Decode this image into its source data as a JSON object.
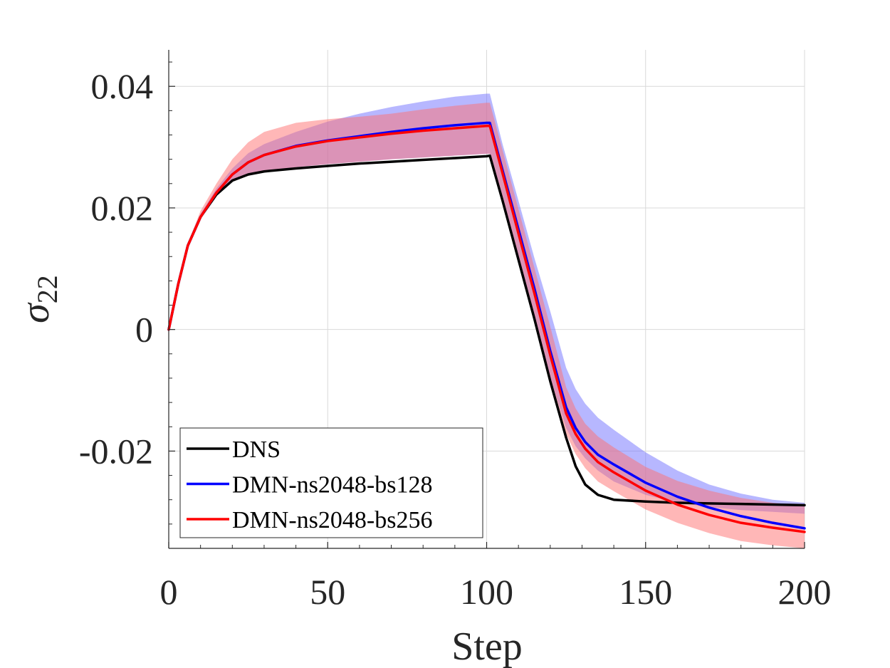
{
  "chart_data": {
    "type": "line",
    "title": "",
    "xlabel": "Step",
    "ylabel": "σ22",
    "ylabel_base": "σ",
    "ylabel_sub": "22",
    "xlim": [
      0,
      200
    ],
    "ylim": [
      -0.036,
      0.046
    ],
    "xticks": [
      0,
      50,
      100,
      150,
      200
    ],
    "xtick_labels": [
      "0",
      "50",
      "100",
      "150",
      "200"
    ],
    "yticks": [
      -0.02,
      0,
      0.02,
      0.04
    ],
    "ytick_labels": [
      "-0.02",
      "0",
      "0.02",
      "0.04"
    ],
    "grid": true,
    "legend_position": "bottom-left",
    "x": [
      0,
      3,
      6,
      10,
      15,
      20,
      25,
      30,
      40,
      50,
      60,
      70,
      80,
      90,
      100,
      101,
      105,
      110,
      115,
      120,
      125,
      128,
      131,
      135,
      140,
      150,
      160,
      170,
      180,
      190,
      200
    ],
    "series": [
      {
        "name": "DNS",
        "color": "#000000",
        "values": [
          0,
          0.0075,
          0.0138,
          0.0185,
          0.0222,
          0.0245,
          0.0255,
          0.026,
          0.0265,
          0.0269,
          0.0273,
          0.0276,
          0.0279,
          0.0282,
          0.0285,
          0.0286,
          0.0212,
          0.0115,
          0.0018,
          -0.0085,
          -0.0178,
          -0.0225,
          -0.0255,
          -0.0272,
          -0.028,
          -0.0283,
          -0.0285,
          -0.0286,
          -0.0287,
          -0.0288,
          -0.0289
        ]
      },
      {
        "name": "DMN-ns2048-bs128",
        "color": "#0000ff",
        "band_color": "#6f6fff",
        "values": [
          0,
          0.0075,
          0.0138,
          0.0185,
          0.0225,
          0.0255,
          0.0275,
          0.0287,
          0.0302,
          0.0311,
          0.0318,
          0.0325,
          0.0331,
          0.0336,
          0.034,
          0.034,
          0.0262,
          0.0165,
          0.0068,
          -0.0035,
          -0.0128,
          -0.0162,
          -0.0185,
          -0.0206,
          -0.0222,
          -0.0252,
          -0.0275,
          -0.0293,
          -0.0307,
          -0.0318,
          -0.0327
        ],
        "band_lower": [
          0,
          0.0075,
          0.0138,
          0.0184,
          0.0221,
          0.0245,
          0.0255,
          0.026,
          0.0267,
          0.0272,
          0.0276,
          0.028,
          0.0283,
          0.0286,
          0.0289,
          0.0289,
          0.022,
          0.0118,
          0.002,
          -0.008,
          -0.0162,
          -0.0192,
          -0.0212,
          -0.0232,
          -0.025,
          -0.0272,
          -0.0285,
          -0.0292,
          -0.0297,
          -0.03,
          -0.0303
        ],
        "band_upper": [
          0,
          0.0075,
          0.014,
          0.019,
          0.0232,
          0.0265,
          0.029,
          0.0305,
          0.0325,
          0.0342,
          0.0355,
          0.0366,
          0.0375,
          0.0383,
          0.0388,
          0.0388,
          0.0305,
          0.0212,
          0.0118,
          0.003,
          -0.0063,
          -0.0098,
          -0.0122,
          -0.0145,
          -0.0165,
          -0.0202,
          -0.0232,
          -0.0255,
          -0.027,
          -0.028,
          -0.0285
        ]
      },
      {
        "name": "DMN-ns2048-bs256",
        "color": "#ff0000",
        "band_color": "#ff7070",
        "values": [
          0,
          0.0075,
          0.0138,
          0.0185,
          0.0225,
          0.0255,
          0.0275,
          0.0287,
          0.0301,
          0.031,
          0.0316,
          0.0322,
          0.0327,
          0.0331,
          0.0335,
          0.0335,
          0.0257,
          0.0158,
          0.006,
          -0.0042,
          -0.0138,
          -0.0172,
          -0.0196,
          -0.0218,
          -0.0235,
          -0.0265,
          -0.0288,
          -0.0305,
          -0.0318,
          -0.0326,
          -0.0333
        ],
        "band_lower": [
          0,
          0.0075,
          0.0138,
          0.0184,
          0.022,
          0.0245,
          0.0255,
          0.026,
          0.0267,
          0.0272,
          0.0276,
          0.028,
          0.0283,
          0.0286,
          0.0289,
          0.0289,
          0.021,
          0.011,
          0.0012,
          -0.0088,
          -0.0172,
          -0.0205,
          -0.0228,
          -0.025,
          -0.0266,
          -0.0296,
          -0.0318,
          -0.0335,
          -0.0348,
          -0.0355,
          -0.036
        ],
        "band_upper": [
          0,
          0.0077,
          0.0142,
          0.0195,
          0.024,
          0.028,
          0.0308,
          0.0325,
          0.034,
          0.0346,
          0.035,
          0.0355,
          0.0362,
          0.0368,
          0.0373,
          0.0373,
          0.0295,
          0.0198,
          0.0102,
          0.0005,
          -0.0095,
          -0.013,
          -0.0155,
          -0.0176,
          -0.0194,
          -0.0226,
          -0.0249,
          -0.0265,
          -0.0277,
          -0.0285,
          -0.029
        ]
      }
    ]
  }
}
